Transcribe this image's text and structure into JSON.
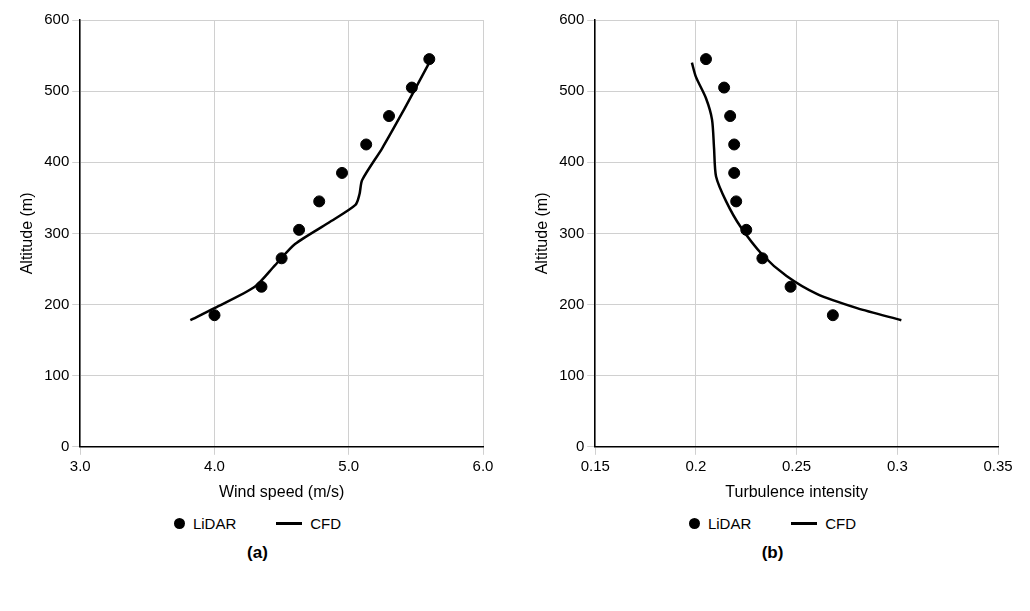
{
  "chart_data": [
    {
      "type": "scatter",
      "title": "(a)",
      "x_label": "Wind speed (m/s)",
      "y_label": "Altitude (m)",
      "xlim": [
        3.0,
        6.0
      ],
      "xticks": [
        {
          "value": 3.0,
          "label": "3.0"
        },
        {
          "value": 4.0,
          "label": "4.0"
        },
        {
          "value": 5.0,
          "label": "5.0"
        },
        {
          "value": 6.0,
          "label": "6.0"
        }
      ],
      "ylim": [
        0,
        600
      ],
      "yticks": [
        0,
        100,
        200,
        300,
        400,
        500,
        600
      ],
      "grid": true,
      "legend": "bottom",
      "series": [
        {
          "name": "LiDAR",
          "type": "scatter",
          "marker": "circle",
          "color": "#000000",
          "x": [
            4.0,
            4.35,
            4.5,
            4.63,
            4.78,
            4.95,
            5.13,
            5.3,
            5.47,
            5.6
          ],
          "values": [
            185,
            225,
            265,
            305,
            345,
            385,
            425,
            465,
            505,
            545
          ]
        },
        {
          "name": "CFD",
          "type": "line",
          "line_style": "solid",
          "color": "#000000",
          "x": [
            3.82,
            4.0,
            4.3,
            4.45,
            4.6,
            4.85,
            5.05,
            5.08,
            5.1,
            5.25,
            5.4,
            5.5,
            5.6
          ],
          "values": [
            178,
            195,
            225,
            255,
            285,
            315,
            340,
            355,
            375,
            420,
            470,
            505,
            540
          ]
        }
      ]
    },
    {
      "type": "scatter",
      "title": "(b)",
      "x_label": "Turbulence intensity",
      "y_label": "Altitude (m)",
      "xlim": [
        0.15,
        0.35
      ],
      "xticks": [
        0.15,
        0.2,
        0.25,
        0.3,
        0.35
      ],
      "ylim": [
        0,
        600
      ],
      "yticks": [
        0,
        100,
        200,
        300,
        400,
        500,
        600
      ],
      "grid": true,
      "legend": "bottom",
      "series": [
        {
          "name": "LiDAR",
          "type": "scatter",
          "marker": "circle",
          "color": "#000000",
          "x": [
            0.268,
            0.247,
            0.233,
            0.225,
            0.22,
            0.219,
            0.219,
            0.217,
            0.214,
            0.205
          ],
          "values": [
            185,
            225,
            265,
            305,
            345,
            385,
            425,
            465,
            505,
            545
          ]
        },
        {
          "name": "CFD",
          "type": "line",
          "line_style": "solid",
          "color": "#000000",
          "x": [
            0.302,
            0.28,
            0.26,
            0.245,
            0.233,
            0.222,
            0.215,
            0.21,
            0.209,
            0.208,
            0.205,
            0.2,
            0.198
          ],
          "values": [
            178,
            195,
            215,
            240,
            270,
            310,
            345,
            380,
            420,
            460,
            490,
            520,
            540
          ]
        }
      ]
    }
  ]
}
